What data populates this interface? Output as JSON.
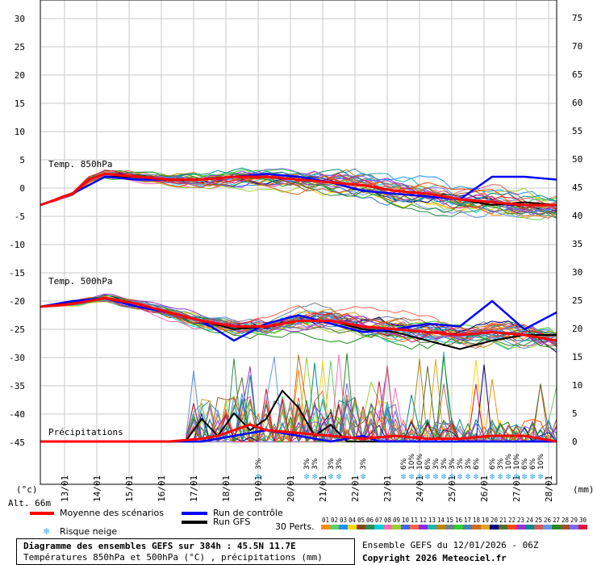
{
  "axes": {
    "left_ticks": [
      "30",
      "25",
      "20",
      "15",
      "10",
      "5",
      "0",
      "-5",
      "-10",
      "-15",
      "-20",
      "-25",
      "-30",
      "-35",
      "-40",
      "-45"
    ],
    "right_ticks": [
      "75",
      "70",
      "65",
      "60",
      "55",
      "50",
      "45",
      "40",
      "35",
      "30",
      "25",
      "20",
      "15",
      "10",
      "5",
      "0"
    ],
    "left_unit": "(°c)",
    "right_unit": "(mm)",
    "altitude": "Alt. 66m",
    "dates": [
      "13/01",
      "14/01",
      "15/01",
      "16/01",
      "17/01",
      "18/01",
      "19/01",
      "20/01",
      "21/01",
      "22/01",
      "23/01",
      "24/01",
      "25/01",
      "26/01",
      "27/01",
      "28/01"
    ]
  },
  "panel_labels": {
    "t850": "Temp. 850hPa",
    "t500": "Temp. 500hPa",
    "precip": "Précipitations"
  },
  "snow_risk": {
    "label": "Risque neige",
    "labels": [
      "3%",
      "3%",
      "3%",
      "3%",
      "3%",
      "3%",
      "6%",
      "10%",
      "10%",
      "6%",
      "3%",
      "3%",
      "3%",
      "3%",
      "3%",
      "6%",
      "6%",
      "3%",
      "10%",
      "10%",
      "6%",
      "6%",
      "10%"
    ]
  },
  "legend": {
    "mean": "Moyenne des scénarios",
    "control": "Run de contrôle",
    "gfs": "Run GFS",
    "perts": "30 Perts.",
    "pert_numbers": [
      "01",
      "02",
      "03",
      "04",
      "05",
      "06",
      "07",
      "08",
      "09",
      "10",
      "11",
      "12",
      "13",
      "14",
      "15",
      "16",
      "17",
      "18",
      "19",
      "20",
      "21",
      "22",
      "23",
      "24",
      "25",
      "26",
      "27",
      "28",
      "29",
      "30"
    ],
    "pert_colors": [
      "#ff8c00",
      "#66cc66",
      "#1e90ff",
      "#ffd700",
      "#8b4513",
      "#2e8b57",
      "#00ced1",
      "#ff69b4",
      "#9acd32",
      "#4169e1",
      "#ff6347",
      "#8a2be2",
      "#20b2aa",
      "#b8860b",
      "#708090",
      "#32cd32",
      "#4682b4",
      "#d2691e",
      "#daa520",
      "#000080",
      "#556b2f",
      "#ff4500",
      "#9932cc",
      "#008b8b",
      "#cd5c5c",
      "#6495ed",
      "#228b22",
      "#a0522d",
      "#7b68ee",
      "#dc143c"
    ]
  },
  "title": {
    "line1": "Diagramme des ensembles GEFS sur 384h : 45.5N 11.7E",
    "line2": "Températures 850hPa et 500hPa (°C) , précipitations (mm)"
  },
  "ensemble": {
    "line1": "Ensemble GEFS du 12/01/2026 - 06Z",
    "line2": "Copyright 2026 Meteociel.fr"
  },
  "colors": {
    "mean": "#ff0000",
    "control": "#0000ff",
    "gfs": "#000000",
    "snow": "#3aa8e8"
  },
  "chart_data": {
    "type": "line",
    "x_unit": "days from 12/01/2026 06Z",
    "xlim": [
      0,
      16
    ],
    "ylim_temp": [
      -45,
      30
    ],
    "ylim_precip": [
      0,
      75
    ],
    "series": [
      {
        "name": "Moyenne des scénarios",
        "panel": "t850",
        "x": [
          0,
          1,
          1.5,
          2,
          3,
          4,
          5,
          6,
          7,
          8,
          9,
          10,
          11,
          12,
          13,
          14,
          15,
          16
        ],
        "y": [
          -3,
          -1,
          1.5,
          2.5,
          2,
          1.5,
          1.5,
          2,
          2,
          1.5,
          1,
          0.5,
          -0.5,
          -1,
          -2,
          -2.5,
          -3,
          -3
        ]
      },
      {
        "name": "Run de contrôle",
        "panel": "t850",
        "x": [
          0,
          1,
          2,
          3,
          4,
          5,
          6,
          7,
          8,
          9,
          10,
          11,
          12,
          13,
          14,
          15,
          16
        ],
        "y": [
          -3,
          -1,
          2,
          1.5,
          1.5,
          1.5,
          2,
          2.5,
          2,
          1,
          -0.5,
          -1,
          -1.5,
          -2,
          2,
          2,
          1.5
        ]
      },
      {
        "name": "Run GFS",
        "panel": "t850",
        "x": [
          0,
          1,
          2,
          3,
          4,
          5,
          6,
          7,
          8,
          9,
          10,
          11,
          12,
          13,
          14,
          15,
          16
        ],
        "y": [
          -3,
          -1,
          2,
          2,
          1.5,
          1.5,
          2,
          2,
          1.5,
          1,
          0.5,
          -0.5,
          -1,
          -2,
          -3,
          -2.5,
          -3
        ]
      },
      {
        "name": "Moyenne des scénarios",
        "panel": "t500",
        "x": [
          0,
          1,
          2,
          3,
          4,
          5,
          6,
          7,
          8,
          9,
          10,
          11,
          12,
          13,
          14,
          15,
          16
        ],
        "y": [
          -21,
          -20.5,
          -19.5,
          -20.5,
          -22,
          -23.5,
          -24.5,
          -24.5,
          -23.5,
          -23.5,
          -24.5,
          -25,
          -25.5,
          -26,
          -25.5,
          -26,
          -27
        ]
      },
      {
        "name": "Run de contrôle",
        "panel": "t500",
        "x": [
          0,
          1,
          2,
          3,
          4,
          5,
          6,
          7,
          8,
          9,
          10,
          11,
          12,
          13,
          14,
          15,
          16
        ],
        "y": [
          -21,
          -20,
          -19.5,
          -21,
          -22,
          -23.5,
          -27,
          -24,
          -22.5,
          -24,
          -25.5,
          -25,
          -24,
          -24.5,
          -20,
          -25,
          -22
        ]
      },
      {
        "name": "Run GFS",
        "panel": "t500",
        "x": [
          0,
          1,
          2,
          3,
          4,
          5,
          6,
          7,
          8,
          9,
          10,
          11,
          12,
          13,
          14,
          15,
          16
        ],
        "y": [
          -21,
          -20,
          -19.5,
          -20.5,
          -22,
          -23.5,
          -25,
          -24.5,
          -23.5,
          -23.5,
          -25,
          -25.5,
          -27,
          -28.5,
          -27,
          -26,
          -26
        ]
      },
      {
        "name": "Moyenne des scénarios",
        "panel": "precip",
        "x": [
          0,
          1,
          2,
          3,
          4,
          5,
          5.5,
          6,
          6.5,
          7,
          8,
          9,
          10,
          11,
          12,
          13,
          14,
          15,
          16
        ],
        "y": [
          0,
          0,
          0,
          0,
          0,
          0.5,
          1,
          2,
          3,
          2,
          1.5,
          1,
          0.5,
          1,
          0.5,
          0.5,
          1,
          1,
          0
        ]
      },
      {
        "name": "Run GFS",
        "panel": "precip",
        "x": [
          0,
          4.5,
          5,
          5.5,
          6,
          6.5,
          7,
          7.5,
          8,
          8.5,
          9,
          9.5,
          10,
          12,
          14,
          15,
          16
        ],
        "y": [
          0,
          0,
          4,
          1,
          5,
          2,
          4,
          9,
          6,
          1,
          3,
          0,
          0,
          0,
          0,
          0,
          0
        ]
      },
      {
        "name": "Run de contrôle",
        "panel": "precip",
        "x": [
          0,
          5,
          6,
          7,
          8,
          9,
          10,
          10.5,
          11,
          12,
          13,
          14,
          15,
          16
        ],
        "y": [
          0,
          0,
          1,
          2,
          1,
          0,
          1,
          0,
          0,
          0,
          0,
          0,
          0,
          0
        ]
      }
    ]
  }
}
